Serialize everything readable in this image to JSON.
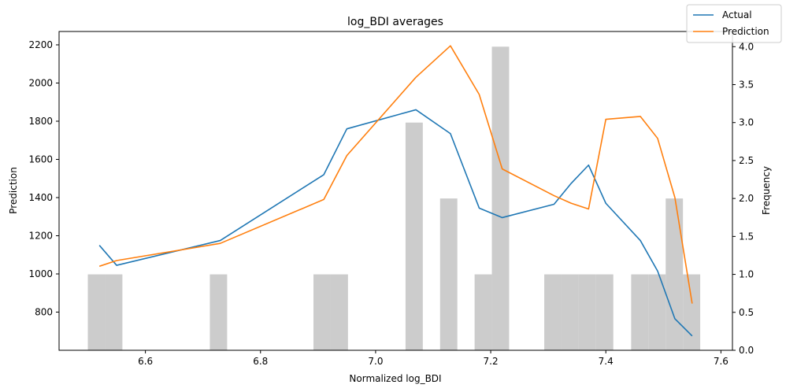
{
  "chart_data": {
    "type": "line",
    "title": "log_BDI averages",
    "xlabel": "Normalized log_BDI",
    "ylabel": "Prediction",
    "y2label": "Frequency",
    "xlim": [
      6.45,
      7.62
    ],
    "ylim": [
      600,
      2270
    ],
    "y2lim": [
      0,
      4.2
    ],
    "xticks": [
      6.6,
      6.8,
      7.0,
      7.2,
      7.4,
      7.6
    ],
    "yticks": [
      800,
      1000,
      1200,
      1400,
      1600,
      1800,
      2000,
      2200
    ],
    "y2ticks": [
      0.0,
      0.5,
      1.0,
      1.5,
      2.0,
      2.5,
      3.0,
      3.5,
      4.0
    ],
    "legend_position": "top-right",
    "series": [
      {
        "name": "Actual",
        "color": "#1f77b4",
        "x": [
          6.52,
          6.55,
          6.73,
          6.91,
          6.95,
          7.07,
          7.13,
          7.18,
          7.22,
          7.31,
          7.34,
          7.37,
          7.4,
          7.46,
          7.49,
          7.52,
          7.55
        ],
        "y": [
          1150,
          1045,
          1175,
          1520,
          1760,
          1860,
          1735,
          1345,
          1295,
          1365,
          1475,
          1570,
          1370,
          1175,
          1015,
          765,
          675
        ]
      },
      {
        "name": "Prediction",
        "color": "#ff7f0e",
        "x": [
          6.52,
          6.55,
          6.73,
          6.91,
          6.95,
          7.07,
          7.13,
          7.18,
          7.22,
          7.31,
          7.34,
          7.37,
          7.4,
          7.46,
          7.49,
          7.52,
          7.55
        ],
        "y": [
          1040,
          1070,
          1160,
          1390,
          1620,
          2030,
          2195,
          1940,
          1550,
          1410,
          1370,
          1340,
          1810,
          1825,
          1710,
          1400,
          845
        ]
      }
    ],
    "histogram": {
      "color": "#cccccc",
      "bin_width": 0.03,
      "bins": [
        {
          "x": 6.515,
          "value": 1
        },
        {
          "x": 6.545,
          "value": 1
        },
        {
          "x": 6.727,
          "value": 1
        },
        {
          "x": 6.907,
          "value": 1
        },
        {
          "x": 6.937,
          "value": 1
        },
        {
          "x": 7.067,
          "value": 3
        },
        {
          "x": 7.127,
          "value": 2
        },
        {
          "x": 7.187,
          "value": 1
        },
        {
          "x": 7.217,
          "value": 4
        },
        {
          "x": 7.308,
          "value": 1
        },
        {
          "x": 7.338,
          "value": 1
        },
        {
          "x": 7.368,
          "value": 1
        },
        {
          "x": 7.398,
          "value": 1
        },
        {
          "x": 7.459,
          "value": 1
        },
        {
          "x": 7.489,
          "value": 1
        },
        {
          "x": 7.519,
          "value": 2
        },
        {
          "x": 7.549,
          "value": 1
        }
      ]
    }
  }
}
